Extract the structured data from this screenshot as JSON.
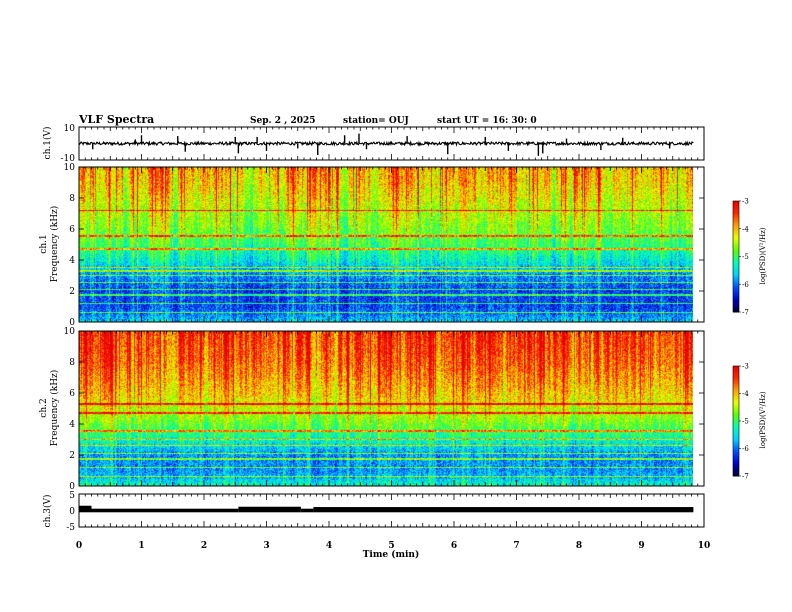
{
  "header": {
    "title": "VLF Spectra",
    "date": "Sep. 2 , 2025",
    "station": "station= OUJ",
    "start": "start UT = 16: 30: 0"
  },
  "colors": {
    "spectrogram": [
      "#00002a",
      "#0000c8",
      "#0050ff",
      "#00d2ff",
      "#00ffb4",
      "#5aff00",
      "#e6ff00",
      "#ffa000",
      "#ff2800",
      "#e60000"
    ]
  },
  "chart_data": [
    {
      "type": "line",
      "id": "ch1",
      "ylabel": "ch.1(V)",
      "ylim": [
        -10,
        10
      ],
      "yticks": [
        "10",
        "-10"
      ],
      "xlim": [
        0,
        10
      ],
      "baseline": 0,
      "spikes": [
        {
          "t": 0.22,
          "v": -3.5
        },
        {
          "t": 0.9,
          "v": 2.5
        },
        {
          "t": 1.0,
          "v": 5.0
        },
        {
          "t": 1.58,
          "v": 4.5
        },
        {
          "t": 1.7,
          "v": -5.0
        },
        {
          "t": 2.5,
          "v": 4.0
        },
        {
          "t": 2.55,
          "v": -6.0
        },
        {
          "t": 2.85,
          "v": 4.0
        },
        {
          "t": 3.0,
          "v": -4.5
        },
        {
          "t": 3.5,
          "v": -3.0
        },
        {
          "t": 3.82,
          "v": -7.0
        },
        {
          "t": 4.25,
          "v": 5.0
        },
        {
          "t": 4.48,
          "v": 6.0
        },
        {
          "t": 4.6,
          "v": -3.5
        },
        {
          "t": 5.25,
          "v": 4.5
        },
        {
          "t": 5.9,
          "v": -6.5
        },
        {
          "t": 6.5,
          "v": 4.0
        },
        {
          "t": 6.87,
          "v": -4.5
        },
        {
          "t": 7.35,
          "v": -7.5
        },
        {
          "t": 7.42,
          "v": -6.0
        },
        {
          "t": 7.8,
          "v": 3.0
        },
        {
          "t": 8.35,
          "v": -4.0
        },
        {
          "t": 8.7,
          "v": 3.5
        },
        {
          "t": 9.45,
          "v": -3.0
        }
      ]
    },
    {
      "type": "heatmap",
      "id": "ch1-spectrogram",
      "ylabel_top": "ch.1",
      "ylabel": "Frequency (kHz)",
      "xlim": [
        0,
        9.83
      ],
      "ylim": [
        0,
        10
      ],
      "yticks": [
        "0",
        "2",
        "4",
        "6",
        "8",
        "10"
      ],
      "colorbar": {
        "label": "log(PSD)(V²/Hz)",
        "range": [
          -7,
          -3
        ],
        "ticks": [
          "-3",
          "-4",
          "-5",
          "-6",
          "-7"
        ]
      },
      "frequency_profile": [
        {
          "f": 0.0,
          "v": -5.6
        },
        {
          "f": 0.5,
          "v": -6.0
        },
        {
          "f": 1.0,
          "v": -6.2
        },
        {
          "f": 2.0,
          "v": -6.2
        },
        {
          "f": 3.0,
          "v": -5.9
        },
        {
          "f": 4.0,
          "v": -5.4
        },
        {
          "f": 5.0,
          "v": -5.0
        },
        {
          "f": 6.0,
          "v": -4.7
        },
        {
          "f": 7.0,
          "v": -4.5
        },
        {
          "f": 8.0,
          "v": -4.3
        },
        {
          "f": 9.0,
          "v": -4.1
        },
        {
          "f": 10.0,
          "v": -4.0
        }
      ],
      "bright_lines_kHz": [
        0.6,
        1.2,
        1.75,
        2.1,
        2.55,
        3.0,
        3.3,
        3.5,
        4.7,
        5.55,
        7.2
      ]
    },
    {
      "type": "heatmap",
      "id": "ch2-spectrogram",
      "ylabel_top": "ch.2",
      "ylabel": "Frequency (kHz)",
      "xlim": [
        0,
        9.83
      ],
      "ylim": [
        0,
        10
      ],
      "yticks": [
        "0",
        "2",
        "4",
        "6",
        "8",
        "10"
      ],
      "colorbar": {
        "label": "log(PSD)(V²/Hz)",
        "range": [
          -7,
          -3
        ],
        "ticks": [
          "-3",
          "-4",
          "-5",
          "-6",
          "-7"
        ]
      },
      "frequency_profile": [
        {
          "f": 0.0,
          "v": -5.3
        },
        {
          "f": 0.5,
          "v": -5.7
        },
        {
          "f": 1.0,
          "v": -5.9
        },
        {
          "f": 2.0,
          "v": -5.9
        },
        {
          "f": 3.0,
          "v": -5.3
        },
        {
          "f": 4.0,
          "v": -4.8
        },
        {
          "f": 5.0,
          "v": -4.4
        },
        {
          "f": 6.0,
          "v": -4.1
        },
        {
          "f": 7.0,
          "v": -3.9
        },
        {
          "f": 8.0,
          "v": -3.7
        },
        {
          "f": 9.0,
          "v": -3.6
        },
        {
          "f": 10.0,
          "v": -3.5
        }
      ],
      "bright_lines_kHz": [
        0.6,
        1.2,
        1.75,
        2.1,
        2.6,
        3.0,
        3.55,
        4.7,
        5.3
      ]
    },
    {
      "type": "line",
      "id": "ch3",
      "ylabel": "ch.3(V)",
      "xlabel": "Time (min)",
      "ylim": [
        -5,
        5
      ],
      "yticks": [
        "5",
        "0",
        "-5"
      ],
      "xlim": [
        0,
        10
      ],
      "xticks": [
        "0",
        "1",
        "2",
        "3",
        "4",
        "5",
        "6",
        "7",
        "8",
        "9",
        "10"
      ],
      "segments": [
        {
          "t0": 0.0,
          "t1": 0.2,
          "v": 0.9
        },
        {
          "t0": 0.2,
          "t1": 2.55,
          "v": 0.0
        },
        {
          "t0": 2.55,
          "t1": 3.55,
          "v": 0.6
        },
        {
          "t0": 3.55,
          "t1": 3.75,
          "v": 0.0
        },
        {
          "t0": 3.75,
          "t1": 9.83,
          "v": 0.5
        }
      ]
    }
  ]
}
